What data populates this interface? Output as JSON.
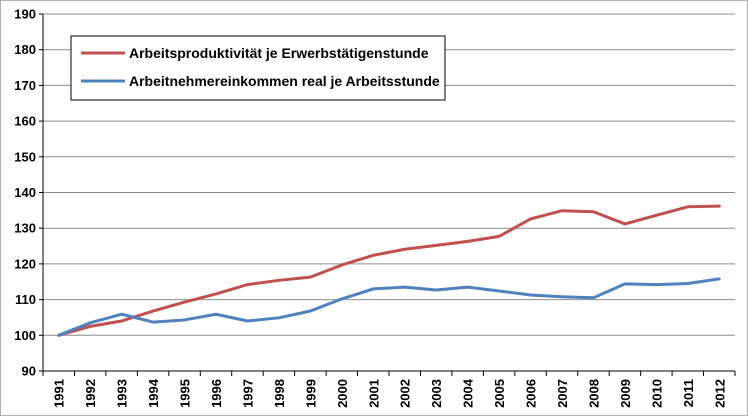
{
  "chart_data": {
    "type": "line",
    "title": "",
    "xlabel": "",
    "ylabel": "",
    "ylim": [
      90,
      190
    ],
    "y_ticks": [
      "90",
      "100",
      "110",
      "120",
      "130",
      "140",
      "150",
      "160",
      "170",
      "180",
      "190"
    ],
    "x": [
      "1991",
      "1992",
      "1993",
      "1994",
      "1995",
      "1996",
      "1997",
      "1998",
      "1999",
      "2000",
      "2001",
      "2002",
      "2003",
      "2004",
      "2005",
      "2006",
      "2007",
      "2008",
      "2009",
      "2010",
      "2011",
      "2012"
    ],
    "grid": "horizontal",
    "legend": "top-left",
    "series": [
      {
        "name": "Arbeitsproduktivität je Erwerbstätigenstunde",
        "color": "#c0504d",
        "values": [
          100,
          102.5,
          104,
          106.8,
          109.3,
          111.6,
          114.2,
          115.4,
          116.3,
          119.7,
          122.4,
          124.1,
          125.2,
          126.3,
          127.7,
          132.6,
          134.9,
          134.6,
          131.2,
          133.6,
          136,
          136.2
        ]
      },
      {
        "name": "Arbeitnehmereinkommen real je Arbeitsstunde",
        "color": "#4f81bd",
        "values": [
          100,
          103.5,
          105.9,
          103.7,
          104.3,
          105.9,
          104,
          104.9,
          106.8,
          110.2,
          113,
          113.5,
          112.7,
          113.5,
          112.4,
          111.3,
          110.8,
          110.5,
          114.4,
          114.2,
          114.5,
          115.8
        ]
      }
    ]
  }
}
